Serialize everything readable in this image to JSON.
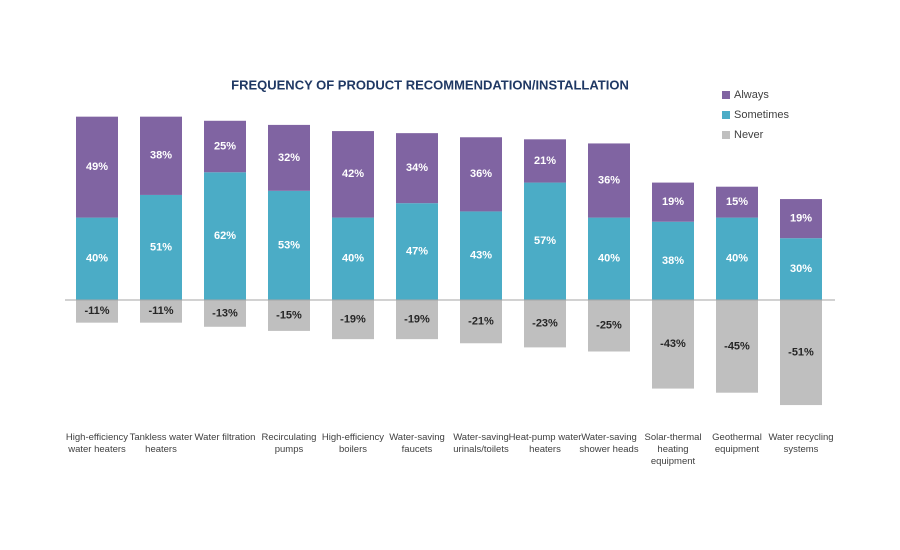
{
  "chart_data": {
    "type": "stacked-bar",
    "title": "FREQUENCY OF PRODUCT RECOMMENDATION/INSTALLATION",
    "categories": [
      "High-efficiency water heaters",
      "Tankless water heaters",
      "Water filtration",
      "Recirculating pumps",
      "High-efficiency boilers",
      "Water-saving faucets",
      "Water-saving urinals/toilets",
      "Heat-pump water heaters",
      "Water-saving shower heads",
      "Solar-thermal heating equipment",
      "Geothermal equipment",
      "Water recycling systems"
    ],
    "series": [
      {
        "name": "Always",
        "color": "#8064a2",
        "values": [
          49,
          38,
          25,
          32,
          42,
          34,
          36,
          21,
          36,
          19,
          15,
          19
        ],
        "value_labels": [
          "49%",
          "38%",
          "25%",
          "32%",
          "42%",
          "34%",
          "36%",
          "21%",
          "36%",
          "19%",
          "15%",
          "19%"
        ]
      },
      {
        "name": "Sometimes",
        "color": "#4bacc6",
        "values": [
          40,
          51,
          62,
          53,
          40,
          47,
          43,
          57,
          40,
          38,
          40,
          30
        ],
        "value_labels": [
          "40%",
          "51%",
          "62%",
          "53%",
          "40%",
          "47%",
          "43%",
          "57%",
          "40%",
          "38%",
          "40%",
          "30%"
        ]
      },
      {
        "name": "Never",
        "color": "#bfbfbf",
        "values": [
          -11,
          -11,
          -13,
          -15,
          -19,
          -19,
          -21,
          -23,
          -25,
          -43,
          -45,
          -51
        ],
        "value_labels": [
          "-11%",
          "-11%",
          "-13%",
          "-15%",
          "-19%",
          "-19%",
          "-21%",
          "-23%",
          "-25%",
          "-43%",
          "-45%",
          "-51%"
        ]
      }
    ],
    "legend": "top-right"
  }
}
